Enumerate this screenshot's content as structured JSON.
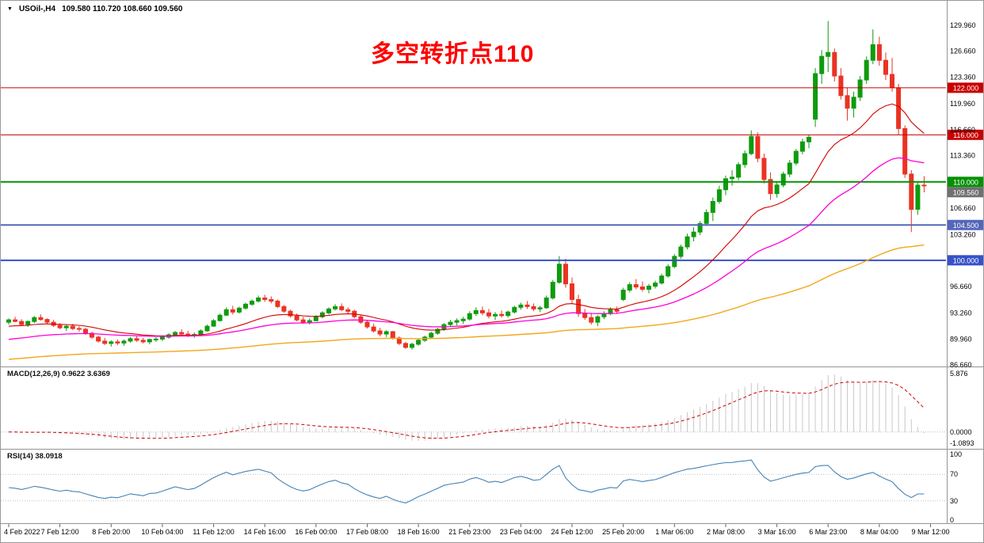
{
  "header": {
    "symbol": "USOil-,H4",
    "ohlc": "109.580 110.720 108.660 109.560"
  },
  "annotation": {
    "text": "多空转折点110",
    "color": "#FE0000"
  },
  "price_axis": {
    "labels": [
      129.96,
      126.66,
      123.36,
      119.96,
      116.66,
      113.36,
      106.66,
      103.26,
      96.66,
      93.26,
      89.96,
      86.66
    ]
  },
  "levels": [
    {
      "value": 122.0,
      "label": "122.000",
      "color": "#C80000",
      "width": 1
    },
    {
      "value": 116.0,
      "label": "116.000",
      "color": "#C80000",
      "width": 1
    },
    {
      "value": 110.0,
      "label": "110.000",
      "color": "#049104",
      "width": 2
    },
    {
      "value": 104.5,
      "label": "104.500",
      "color": "#5566BB",
      "width": 2
    },
    {
      "value": 100.0,
      "label": "100.000",
      "color": "#3652C8",
      "width": 2
    }
  ],
  "current_price": {
    "value": 109.56,
    "label": "109.560",
    "badge_color": "#707070"
  },
  "time_axis": {
    "labels": [
      "4 Feb 2022",
      "7 Feb 12:00",
      "8 Feb 20:00",
      "10 Feb 04:00",
      "11 Feb 12:00",
      "14 Feb 16:00",
      "16 Feb 00:00",
      "17 Feb 08:00",
      "18 Feb 16:00",
      "21 Feb 23:00",
      "23 Feb 04:00",
      "24 Feb 12:00",
      "25 Feb 20:00",
      "1 Mar 06:00",
      "2 Mar 08:00",
      "3 Mar 16:00",
      "6 Mar 23:00",
      "8 Mar 04:00",
      "9 Mar 12:00"
    ],
    "indices": [
      0,
      8,
      16,
      24,
      32,
      40,
      48,
      56,
      64,
      72,
      80,
      88,
      96,
      104,
      112,
      120,
      128,
      136,
      144
    ]
  },
  "chart_data": {
    "type": "candlestick",
    "symbol": "USOil-",
    "timeframe": "H4",
    "ylim": [
      86.0,
      131.6
    ],
    "up_color": "#0E9B0E",
    "down_color": "#EA3323",
    "candles": [
      [
        92.1,
        92.6,
        91.8,
        92.4
      ],
      [
        92.4,
        92.8,
        92.1,
        92.2
      ],
      [
        92.2,
        92.5,
        91.6,
        91.8
      ],
      [
        91.8,
        92.3,
        91.5,
        92.2
      ],
      [
        92.2,
        92.9,
        92.0,
        92.7
      ],
      [
        92.7,
        93.1,
        92.3,
        92.45
      ],
      [
        92.45,
        92.6,
        91.9,
        92.1
      ],
      [
        92.1,
        92.4,
        91.5,
        91.7
      ],
      [
        91.7,
        92.0,
        91.2,
        91.4
      ],
      [
        91.4,
        91.8,
        91.0,
        91.6
      ],
      [
        91.6,
        91.9,
        91.1,
        91.3
      ],
      [
        91.3,
        91.6,
        90.9,
        91.2
      ],
      [
        91.2,
        91.4,
        90.5,
        90.7
      ],
      [
        90.7,
        90.9,
        90.0,
        90.2
      ],
      [
        90.2,
        90.4,
        89.5,
        89.7
      ],
      [
        89.7,
        90.1,
        89.2,
        89.4
      ],
      [
        89.4,
        89.8,
        89.0,
        89.6
      ],
      [
        89.6,
        89.9,
        89.2,
        89.45
      ],
      [
        89.45,
        89.9,
        89.1,
        89.7
      ],
      [
        89.7,
        90.2,
        89.5,
        90.0
      ],
      [
        90.0,
        90.3,
        89.6,
        89.8
      ],
      [
        89.8,
        90.1,
        89.4,
        89.6
      ],
      [
        89.6,
        90.0,
        89.3,
        89.9
      ],
      [
        89.9,
        90.2,
        89.6,
        89.95
      ],
      [
        89.95,
        90.4,
        89.7,
        90.2
      ],
      [
        90.2,
        90.7,
        90.0,
        90.5
      ],
      [
        90.5,
        91.0,
        90.3,
        90.8
      ],
      [
        90.8,
        91.2,
        90.4,
        90.6
      ],
      [
        90.6,
        91.0,
        90.2,
        90.4
      ],
      [
        90.4,
        90.8,
        90.1,
        90.55
      ],
      [
        90.55,
        91.2,
        90.4,
        91.0
      ],
      [
        91.0,
        91.8,
        90.9,
        91.6
      ],
      [
        91.6,
        92.5,
        91.5,
        92.3
      ],
      [
        92.3,
        93.2,
        92.2,
        93.0
      ],
      [
        93.0,
        94.0,
        92.9,
        93.7
      ],
      [
        93.7,
        94.2,
        93.1,
        93.4
      ],
      [
        93.4,
        94.1,
        93.2,
        93.9
      ],
      [
        93.9,
        94.6,
        93.7,
        94.4
      ],
      [
        94.4,
        95.0,
        94.2,
        94.8
      ],
      [
        94.8,
        95.5,
        94.6,
        95.2
      ],
      [
        95.2,
        95.6,
        94.7,
        95.0
      ],
      [
        95.0,
        95.4,
        94.5,
        94.8
      ],
      [
        94.8,
        95.0,
        93.9,
        94.1
      ],
      [
        94.1,
        94.3,
        93.3,
        93.5
      ],
      [
        93.5,
        93.7,
        92.7,
        92.9
      ],
      [
        92.9,
        93.2,
        92.2,
        92.4
      ],
      [
        92.4,
        92.8,
        91.9,
        92.1
      ],
      [
        92.1,
        92.6,
        91.8,
        92.3
      ],
      [
        92.3,
        93.0,
        92.2,
        92.8
      ],
      [
        92.8,
        93.5,
        92.6,
        93.3
      ],
      [
        93.3,
        94.0,
        93.1,
        93.8
      ],
      [
        93.8,
        94.4,
        93.6,
        94.1
      ],
      [
        94.1,
        94.5,
        93.5,
        93.7
      ],
      [
        93.7,
        94.0,
        93.2,
        93.5
      ],
      [
        93.5,
        93.7,
        92.6,
        92.8
      ],
      [
        92.8,
        93.0,
        91.9,
        92.1
      ],
      [
        92.1,
        92.3,
        91.3,
        91.5
      ],
      [
        91.5,
        91.9,
        90.8,
        91.0
      ],
      [
        91.0,
        91.4,
        90.3,
        90.6
      ],
      [
        90.6,
        91.1,
        90.2,
        90.9
      ],
      [
        90.9,
        91.0,
        89.9,
        90.1
      ],
      [
        90.1,
        90.3,
        89.2,
        89.4
      ],
      [
        89.4,
        89.6,
        88.7,
        88.9
      ],
      [
        88.9,
        89.5,
        88.6,
        89.3
      ],
      [
        89.3,
        90.0,
        89.1,
        89.8
      ],
      [
        89.8,
        90.4,
        89.6,
        90.2
      ],
      [
        90.2,
        90.9,
        90.0,
        90.7
      ],
      [
        90.7,
        91.4,
        90.5,
        91.2
      ],
      [
        91.2,
        92.0,
        91.0,
        91.8
      ],
      [
        91.8,
        92.4,
        91.5,
        92.1
      ],
      [
        92.1,
        92.6,
        91.7,
        92.3
      ],
      [
        92.3,
        92.8,
        91.9,
        92.5
      ],
      [
        92.5,
        93.5,
        92.3,
        93.2
      ],
      [
        93.2,
        94.0,
        92.9,
        93.6
      ],
      [
        93.6,
        94.1,
        93.0,
        93.3
      ],
      [
        93.3,
        93.8,
        92.6,
        92.9
      ],
      [
        92.9,
        93.4,
        92.4,
        93.1
      ],
      [
        93.1,
        93.6,
        92.7,
        92.95
      ],
      [
        92.95,
        93.6,
        92.7,
        93.4
      ],
      [
        93.4,
        94.2,
        93.2,
        94.0
      ],
      [
        94.0,
        94.6,
        93.7,
        94.3
      ],
      [
        94.3,
        94.8,
        93.8,
        94.1
      ],
      [
        94.1,
        94.5,
        93.5,
        93.8
      ],
      [
        93.8,
        94.2,
        93.4,
        93.95
      ],
      [
        93.95,
        95.5,
        93.8,
        95.2
      ],
      [
        95.2,
        97.5,
        95.0,
        97.2
      ],
      [
        97.2,
        100.54,
        97.0,
        99.5
      ],
      [
        99.5,
        100.2,
        96.5,
        97.0
      ],
      [
        97.0,
        97.8,
        94.5,
        95.0
      ],
      [
        95.0,
        95.6,
        92.8,
        93.2
      ],
      [
        93.2,
        93.8,
        92.4,
        92.7
      ],
      [
        92.7,
        93.3,
        91.8,
        92.1
      ],
      [
        92.1,
        93.0,
        91.6,
        92.8
      ],
      [
        92.8,
        93.5,
        92.5,
        93.2
      ],
      [
        93.2,
        94.0,
        93.0,
        93.7
      ],
      [
        93.7,
        94.1,
        93.2,
        93.5
      ],
      [
        95.0,
        96.5,
        94.8,
        96.2
      ],
      [
        96.2,
        97.2,
        95.9,
        96.9
      ],
      [
        96.9,
        97.6,
        96.3,
        96.6
      ],
      [
        96.6,
        97.3,
        96.0,
        96.3
      ],
      [
        96.3,
        97.0,
        95.8,
        96.7
      ],
      [
        96.7,
        97.4,
        96.4,
        97.1
      ],
      [
        97.1,
        98.3,
        96.9,
        98.0
      ],
      [
        98.0,
        99.5,
        97.8,
        99.2
      ],
      [
        99.2,
        100.8,
        99.0,
        100.5
      ],
      [
        100.5,
        102.0,
        100.2,
        101.7
      ],
      [
        101.7,
        103.4,
        101.4,
        103.0
      ],
      [
        103.0,
        104.2,
        102.4,
        103.6
      ],
      [
        103.6,
        105.0,
        103.2,
        104.7
      ],
      [
        104.7,
        106.5,
        104.4,
        106.1
      ],
      [
        106.1,
        108.0,
        105.0,
        107.5
      ],
      [
        107.5,
        109.5,
        107.2,
        109.0
      ],
      [
        109.0,
        110.8,
        108.3,
        110.4
      ],
      [
        110.4,
        111.5,
        109.5,
        110.6
      ],
      [
        110.6,
        112.5,
        110.2,
        112.2
      ],
      [
        112.2,
        114.0,
        111.8,
        113.6
      ],
      [
        113.6,
        116.57,
        113.4,
        115.8
      ],
      [
        115.8,
        116.3,
        112.5,
        113.0
      ],
      [
        113.0,
        113.6,
        109.8,
        110.3
      ],
      [
        110.3,
        111.2,
        107.7,
        108.5
      ],
      [
        108.5,
        110.0,
        108.0,
        109.6
      ],
      [
        109.6,
        111.3,
        109.3,
        111.0
      ],
      [
        111.0,
        112.8,
        110.6,
        112.4
      ],
      [
        112.4,
        114.2,
        112.1,
        113.9
      ],
      [
        113.9,
        115.5,
        113.5,
        115.1
      ],
      [
        115.1,
        116.0,
        114.3,
        115.7
      ],
      [
        118.0,
        124.5,
        117.0,
        123.8
      ],
      [
        123.8,
        126.8,
        122.5,
        126.0
      ],
      [
        126.0,
        130.5,
        124.0,
        126.5
      ],
      [
        126.5,
        127.0,
        122.8,
        123.5
      ],
      [
        123.5,
        124.5,
        120.5,
        121.0
      ],
      [
        121.0,
        122.0,
        117.8,
        119.4
      ],
      [
        119.4,
        121.5,
        118.2,
        120.8
      ],
      [
        120.8,
        123.5,
        120.3,
        123.0
      ],
      [
        123.0,
        126.0,
        122.5,
        125.5
      ],
      [
        125.5,
        129.44,
        125.0,
        127.5
      ],
      [
        127.5,
        128.5,
        124.8,
        125.5
      ],
      [
        125.5,
        126.5,
        123.0,
        123.7
      ],
      [
        123.7,
        125.8,
        121.5,
        122.0
      ],
      [
        122.0,
        122.5,
        116.0,
        116.8
      ],
      [
        116.8,
        117.2,
        110.5,
        111.0
      ],
      [
        111.0,
        111.5,
        103.6,
        106.5
      ],
      [
        106.5,
        110.0,
        105.8,
        109.58
      ],
      [
        109.58,
        110.72,
        108.66,
        109.56
      ]
    ],
    "moving_averages": [
      {
        "name": "ma-fast",
        "period": 20,
        "color": "#D40000",
        "seed": 91.5
      },
      {
        "name": "ma-mid",
        "period": 45,
        "color": "#FF00D8",
        "seed": 89.8
      },
      {
        "name": "ma-slow",
        "period": 140,
        "color": "#F2A71B",
        "seed": 87.3
      }
    ]
  },
  "macd": {
    "label": "MACD(12,26,9)",
    "values": "0.9622 3.6369",
    "fast": 12,
    "slow": 26,
    "signal": 9,
    "axis_labels": [
      "5.876",
      "0.0000",
      "-1.0893"
    ],
    "histogram_color": "#C8C8C8",
    "signal_color": "#CC0000"
  },
  "rsi": {
    "label": "RSI(14)",
    "value": "38.0918",
    "period": 14,
    "levels": [
      70,
      30
    ],
    "axis_labels": [
      "100",
      "70",
      "30",
      "0"
    ],
    "color": "#4682B4"
  }
}
